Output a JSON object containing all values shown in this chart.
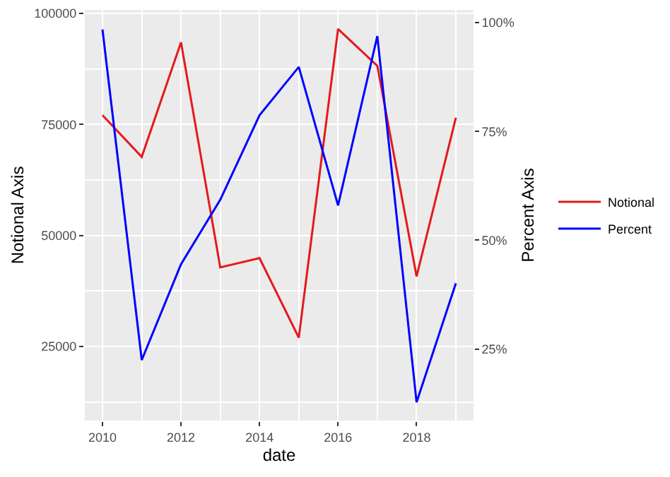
{
  "chart_data": {
    "type": "line",
    "xlabel": "date",
    "ylabel": "Notional Axis",
    "y2label": "Percent Axis",
    "x": [
      2010,
      2011,
      2012,
      2013,
      2014,
      2015,
      2016,
      2017,
      2018,
      2019
    ],
    "series": [
      {
        "name": "Notional",
        "color": "#e41a1c",
        "values": [
          77100,
          67700,
          93500,
          42800,
          44900,
          27000,
          96500,
          88200,
          40800,
          76500
        ]
      },
      {
        "name": "Percent",
        "color": "#0000ff",
        "axis": "y2",
        "values": [
          98.4,
          22.5,
          44.5,
          59.3,
          78.7,
          89.8,
          58.0,
          96.9,
          12.8,
          40.1
        ]
      }
    ],
    "xlim": [
      2009.55,
      2019.45
    ],
    "xticks": [
      2010,
      2012,
      2014,
      2016,
      2018
    ],
    "ylim": [
      8330,
      100800
    ],
    "yticks": [
      25000,
      50000,
      75000,
      100000
    ],
    "y2lim": [
      8.6,
      102.9
    ],
    "y2ticks": [
      {
        "value": 25,
        "label": "25%"
      },
      {
        "value": 50,
        "label": "50%"
      },
      {
        "value": 75,
        "label": "75%"
      },
      {
        "value": 100,
        "label": "100%"
      }
    ],
    "grid": true,
    "legend": "right",
    "marker": "none",
    "line_style": "solid"
  }
}
